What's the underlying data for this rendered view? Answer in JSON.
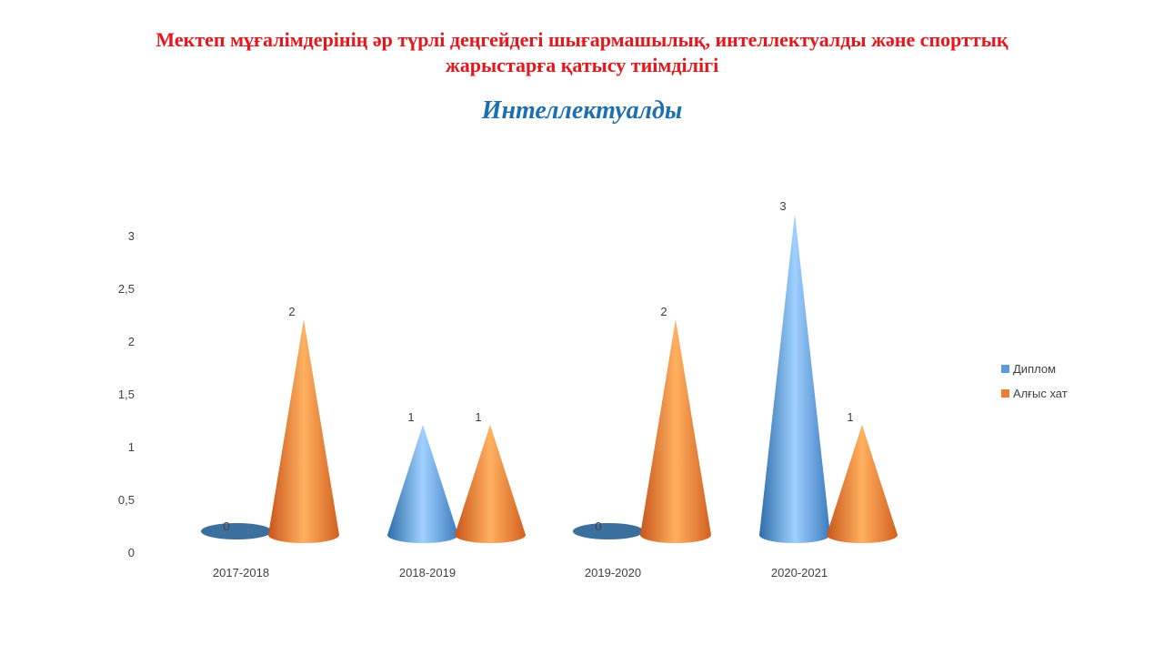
{
  "title": {
    "line1": "Мектеп мұғалімдерінің әр түрлі деңгейдегі шығармашылық, интеллектуалды және спорттық",
    "line2": "жарыстарға қатысу тиімділігі"
  },
  "subtitle": "Интеллектуалды",
  "chart_data": {
    "type": "bar",
    "style": "3d-cone",
    "title": "Интеллектуалды",
    "categories": [
      "2017-2018",
      "2018-2019",
      "2019-2020",
      "2020-2021"
    ],
    "series": [
      {
        "name": "Диплом",
        "values": [
          0,
          1,
          0,
          3
        ],
        "color": "#5b9bd5"
      },
      {
        "name": "Алғыс хат",
        "values": [
          2,
          1,
          2,
          1
        ],
        "color": "#ed7d31"
      }
    ],
    "yticks": [
      "0",
      "0,5",
      "1",
      "1,5",
      "2",
      "2,5",
      "3"
    ],
    "ylim": [
      0,
      3
    ],
    "data_labels": true,
    "grid": false,
    "legend": "right"
  }
}
